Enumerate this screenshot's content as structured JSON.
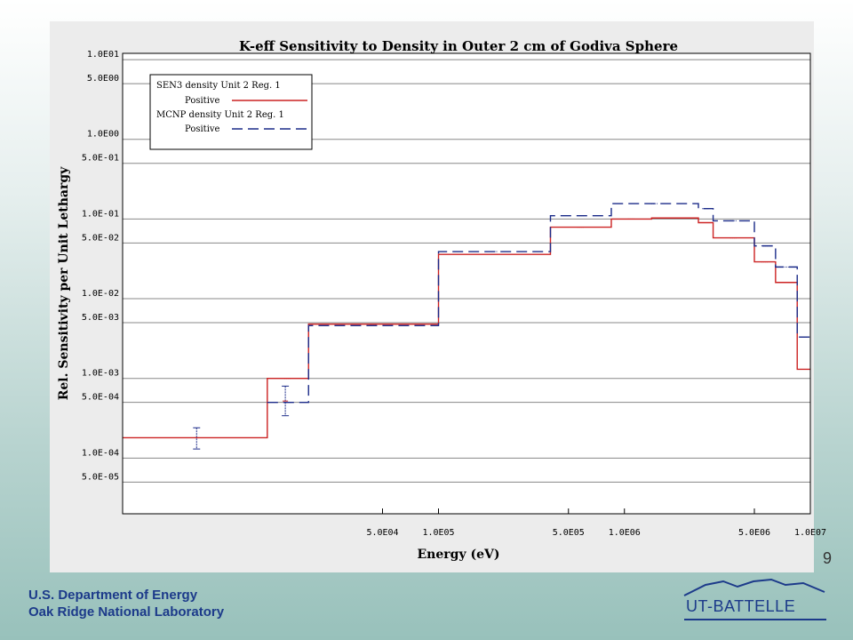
{
  "page_number": "9",
  "footer": {
    "line1": "U.S. Department of Energy",
    "line2": "Oak Ridge National Laboratory"
  },
  "logo": {
    "text": "UT-BATTELLE",
    "icon": "mountain-skyline-icon"
  },
  "colors": {
    "sen3": "#cc2222",
    "mcnp": "#1a2a88",
    "footer": "#1c3a8a"
  },
  "chart_data": {
    "type": "line",
    "title": "K-eff Sensitivity to Density in Outer 2 cm of Godiva Sphere",
    "xlabel": "Energy (eV)",
    "ylabel": "Rel. Sensitivity per Unit Lethargy",
    "x_scale": "log",
    "y_scale": "log",
    "xlim": [
      2000,
      10000000
    ],
    "ylim": [
      2e-05,
      12
    ],
    "x_ticks": [
      {
        "value": 50000,
        "label": "5.0E04"
      },
      {
        "value": 100000,
        "label": "1.0E05"
      },
      {
        "value": 500000,
        "label": "5.0E05"
      },
      {
        "value": 1000000,
        "label": "1.0E06"
      },
      {
        "value": 5000000,
        "label": "5.0E06"
      },
      {
        "value": 10000000,
        "label": "1.0E07"
      }
    ],
    "y_ticks": [
      {
        "value": 10,
        "label": "1.0E01"
      },
      {
        "value": 5,
        "label": "5.0E00"
      },
      {
        "value": 1,
        "label": "1.0E00"
      },
      {
        "value": 0.5,
        "label": "5.0E-01"
      },
      {
        "value": 0.1,
        "label": "1.0E-01"
      },
      {
        "value": 0.05,
        "label": "5.0E-02"
      },
      {
        "value": 0.01,
        "label": "1.0E-02"
      },
      {
        "value": 0.005,
        "label": "5.0E-03"
      },
      {
        "value": 0.001,
        "label": "1.0E-03"
      },
      {
        "value": 0.0005,
        "label": "5.0E-04"
      },
      {
        "value": 0.0001,
        "label": "1.0E-04"
      },
      {
        "value": 5e-05,
        "label": "5.0E-05"
      }
    ],
    "grid": "horizontal",
    "legend_position": "top-left",
    "series": [
      {
        "name": "SEN3 density Unit 2 Reg. 1",
        "sub_label": "Positive",
        "style": "solid",
        "color": "#cc2222",
        "steps": [
          {
            "x0": 2000,
            "x1": 12000,
            "y": 0.00018
          },
          {
            "x0": 12000,
            "x1": 20000,
            "y": 0.001
          },
          {
            "x0": 20000,
            "x1": 100000,
            "y": 0.0048
          },
          {
            "x0": 100000,
            "x1": 400000,
            "y": 0.036
          },
          {
            "x0": 400000,
            "x1": 850000,
            "y": 0.079
          },
          {
            "x0": 850000,
            "x1": 1400000,
            "y": 0.1
          },
          {
            "x0": 1400000,
            "x1": 2500000,
            "y": 0.103
          },
          {
            "x0": 2500000,
            "x1": 3000000,
            "y": 0.09
          },
          {
            "x0": 3000000,
            "x1": 5000000,
            "y": 0.058
          },
          {
            "x0": 5000000,
            "x1": 6500000,
            "y": 0.029
          },
          {
            "x0": 6500000,
            "x1": 8500000,
            "y": 0.016
          },
          {
            "x0": 8500000,
            "x1": 10000000,
            "y": 0.0013
          }
        ]
      },
      {
        "name": "MCNP density Unit 2 Reg. 1",
        "sub_label": "Positive",
        "style": "dashed",
        "color": "#1a2a88",
        "steps": [
          {
            "x0": 12000,
            "x1": 20000,
            "y": 0.0005
          },
          {
            "x0": 20000,
            "x1": 100000,
            "y": 0.0046
          },
          {
            "x0": 100000,
            "x1": 400000,
            "y": 0.039
          },
          {
            "x0": 400000,
            "x1": 850000,
            "y": 0.11
          },
          {
            "x0": 850000,
            "x1": 2500000,
            "y": 0.156
          },
          {
            "x0": 2500000,
            "x1": 3000000,
            "y": 0.135
          },
          {
            "x0": 3000000,
            "x1": 5000000,
            "y": 0.095
          },
          {
            "x0": 5000000,
            "x1": 6500000,
            "y": 0.046
          },
          {
            "x0": 6500000,
            "x1": 8500000,
            "y": 0.025
          },
          {
            "x0": 8500000,
            "x1": 10000000,
            "y": 0.0033
          }
        ],
        "error_bars": [
          {
            "x": 5000,
            "y": 0.00018,
            "lo": 0.00013,
            "hi": 0.00024
          },
          {
            "x": 15000,
            "y": 0.00052,
            "lo": 0.00034,
            "hi": 0.0008
          }
        ]
      }
    ]
  }
}
